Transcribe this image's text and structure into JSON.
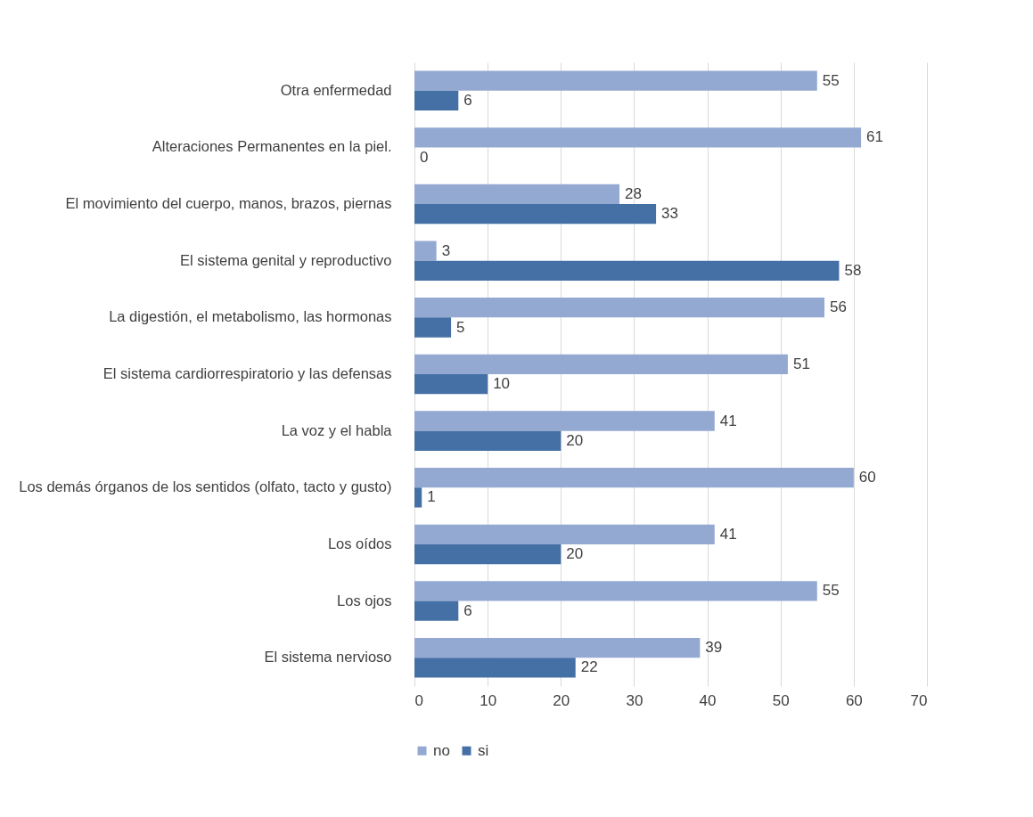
{
  "chart_data": {
    "type": "bar",
    "orientation": "horizontal",
    "categories": [
      "Otra enfermedad",
      "Alteraciones Permanentes en la piel.",
      "El movimiento del cuerpo, manos, brazos, piernas",
      "El sistema genital y reproductivo",
      "La digestión, el metabolismo, las hormonas",
      "El sistema cardiorrespiratorio y las defensas",
      "La voz y el habla",
      "Los demás órganos de los sentidos (olfato, tacto y gusto)",
      "Los oídos",
      "Los ojos",
      "El sistema nervioso"
    ],
    "series": [
      {
        "name": "no",
        "color": "#94a9d2",
        "values": [
          55,
          61,
          28,
          3,
          56,
          51,
          41,
          60,
          41,
          55,
          39
        ]
      },
      {
        "name": "si",
        "color": "#4470a5",
        "values": [
          6,
          0,
          33,
          58,
          5,
          10,
          20,
          1,
          20,
          6,
          22
        ]
      }
    ],
    "xlim": [
      0,
      70
    ],
    "xticks": [
      0,
      10,
      20,
      30,
      40,
      50,
      60,
      70
    ],
    "grid": "x",
    "legend": "bottom",
    "data_labels": true
  }
}
